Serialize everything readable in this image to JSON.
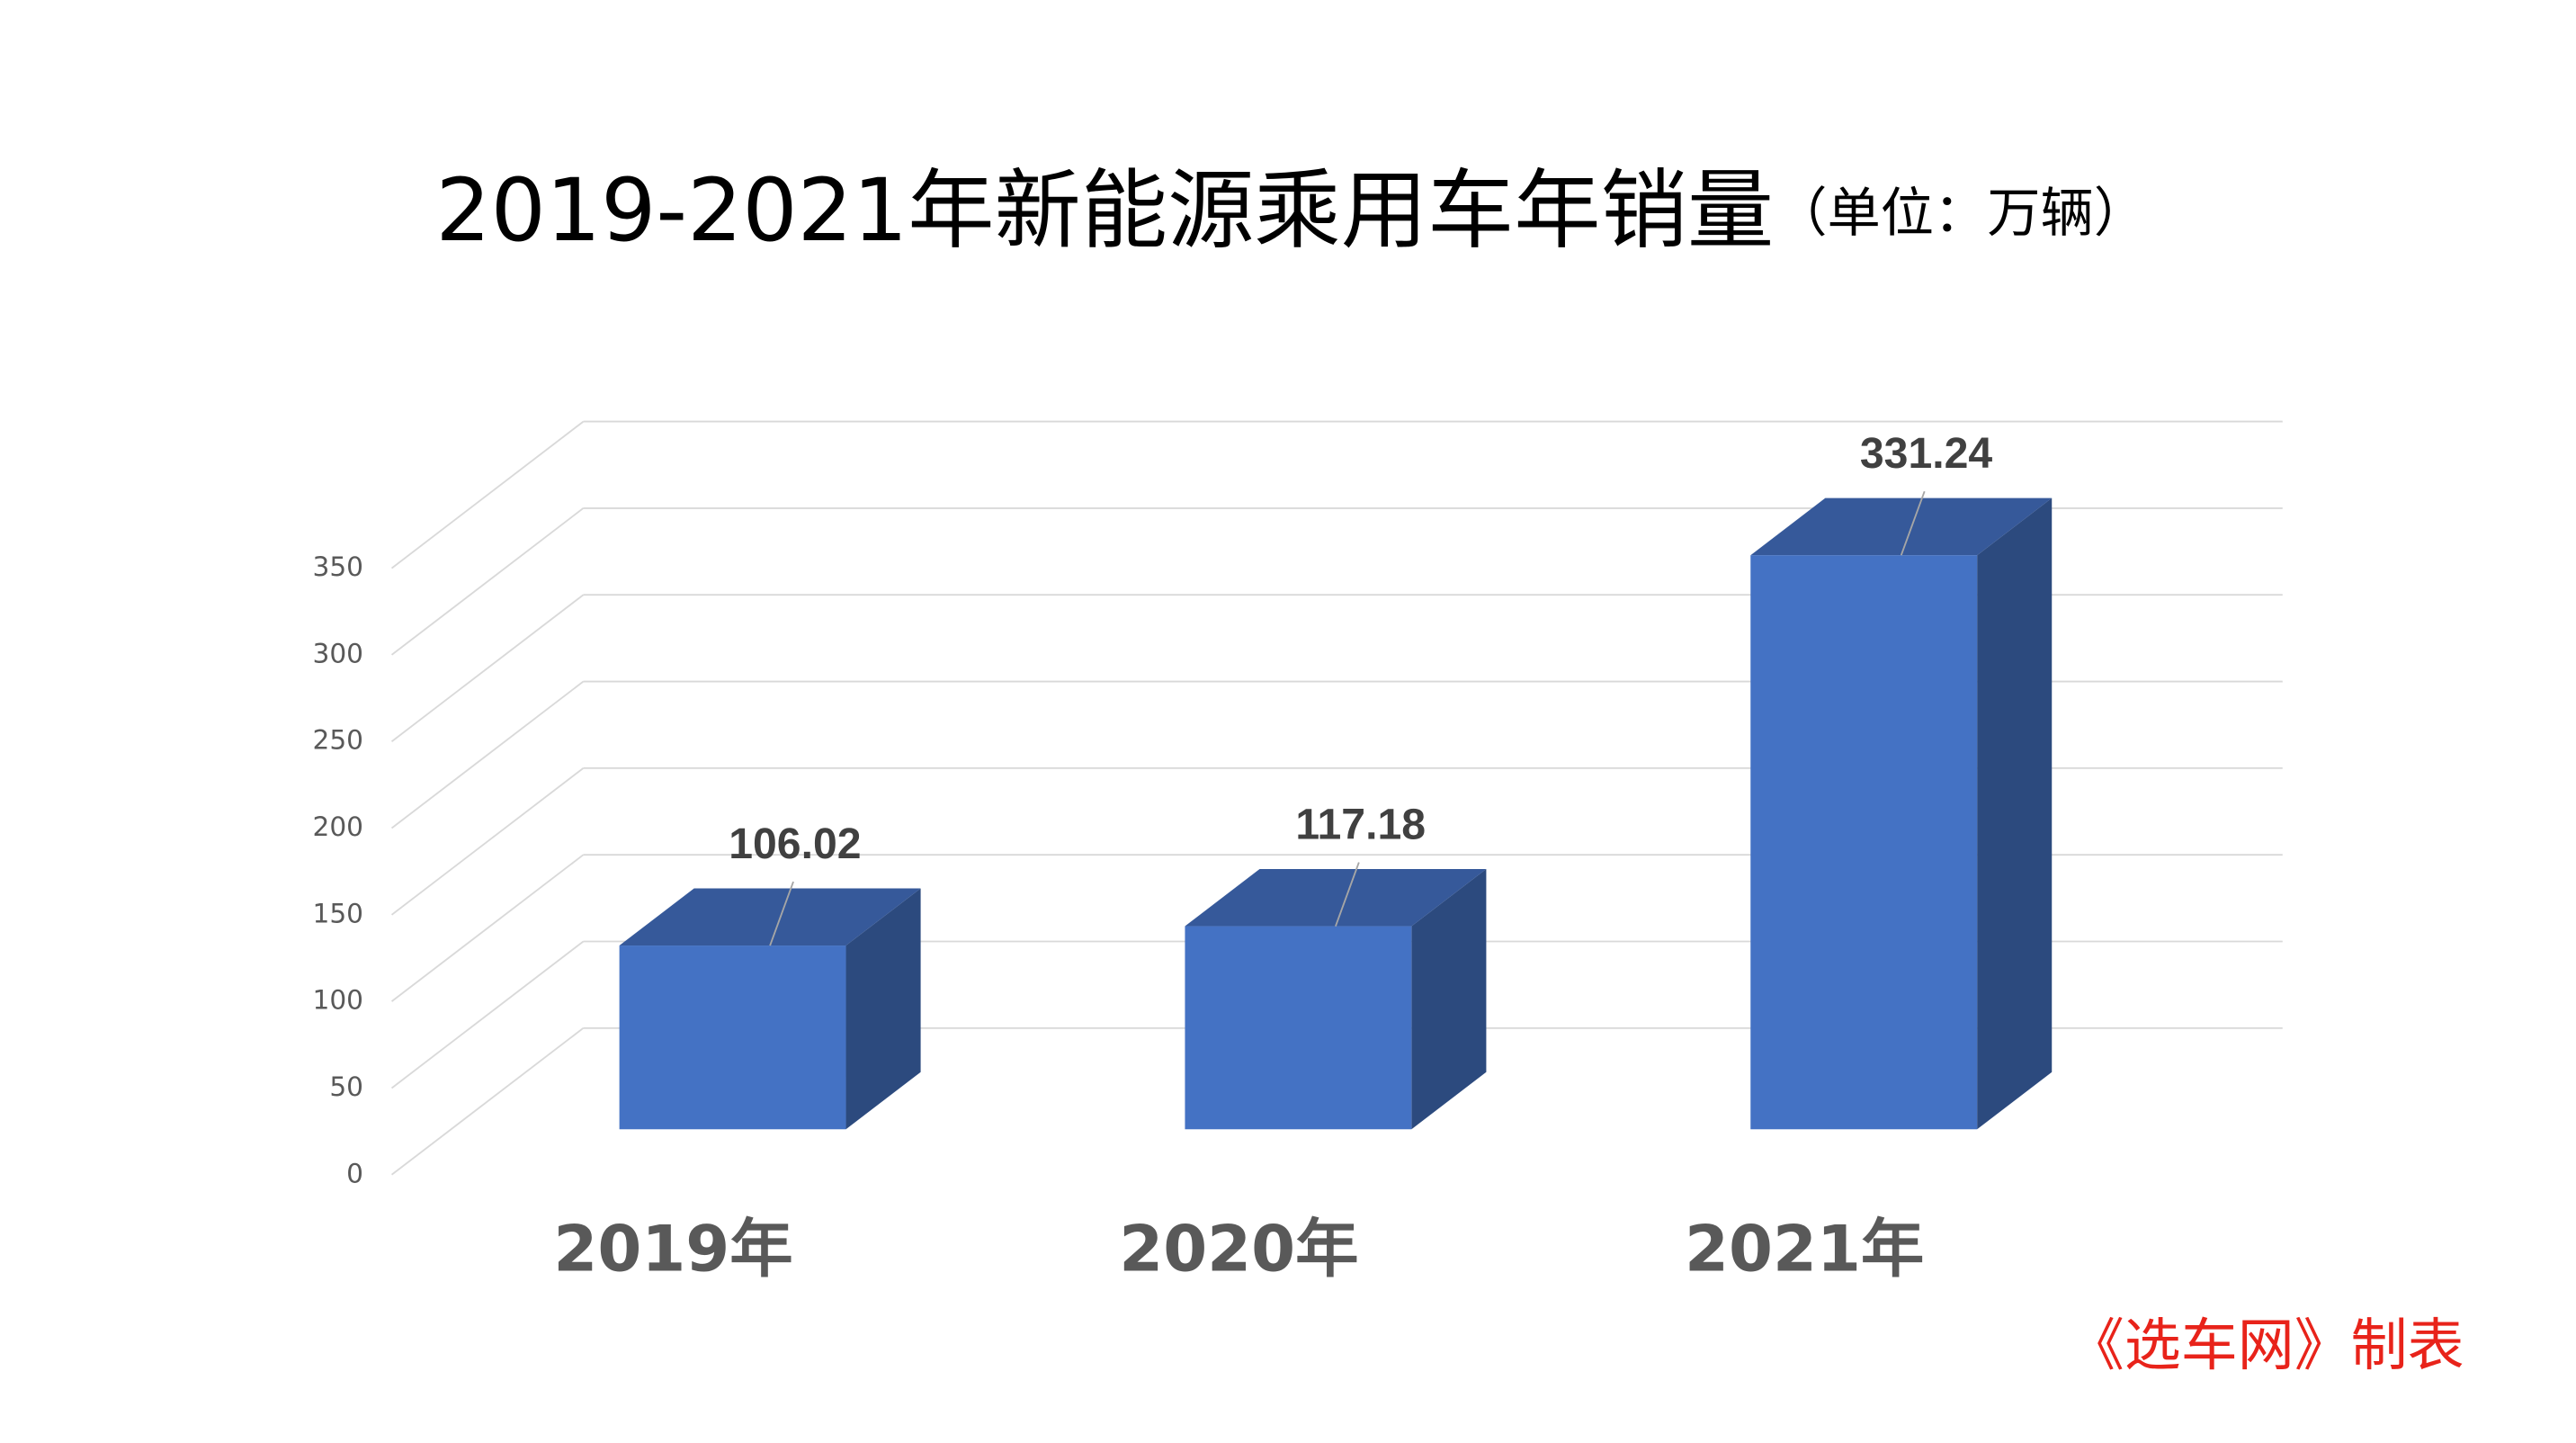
{
  "chart_data": {
    "type": "bar3d",
    "title": "2019-2021年新能源乘用车年销量",
    "subtitle": "（单位：万辆）",
    "categories": [
      "2019年",
      "2020年",
      "2021年"
    ],
    "values": [
      106.02,
      117.18,
      331.24
    ],
    "color": "#4472c4",
    "ylim": [
      0,
      350
    ],
    "yticks": [
      0,
      50,
      100,
      150,
      200,
      250,
      300,
      350
    ],
    "grid": true,
    "note": "《选车网》制表"
  }
}
